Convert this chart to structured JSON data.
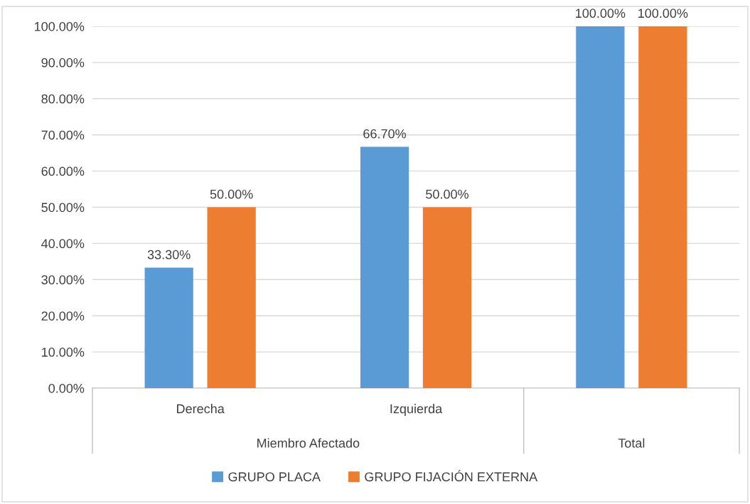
{
  "chart_data": {
    "type": "bar",
    "categories": [
      "Derecha",
      "Izquierda",
      null
    ],
    "series": [
      {
        "name": "GRUPO PLACA",
        "color": "#5b9bd5",
        "values": [
          33.3,
          66.7,
          100
        ],
        "value_labels": [
          "33.30%",
          "66.70%",
          "100.00%"
        ]
      },
      {
        "name": "GRUPO FIJACIÓN EXTERNA",
        "color": "#ed7d31",
        "values": [
          50,
          50,
          100
        ],
        "value_labels": [
          "50.00%",
          "50.00%",
          "100.00%"
        ]
      }
    ],
    "annotations": [
      "Miembro Afectado",
      "Total"
    ],
    "ylim": [
      0,
      100
    ],
    "yticks": [
      {
        "value": 0,
        "label": "0.00%"
      },
      {
        "value": 10,
        "label": "10.00%"
      },
      {
        "value": 20,
        "label": "20.00%"
      },
      {
        "value": 30,
        "label": "30.00%"
      },
      {
        "value": 40,
        "label": "40.00%"
      },
      {
        "value": 50,
        "label": "50.00%"
      },
      {
        "value": 60,
        "label": "60.00%"
      },
      {
        "value": 70,
        "label": "70.00%"
      },
      {
        "value": 80,
        "label": "80.00%"
      },
      {
        "value": 90,
        "label": "90.00%"
      },
      {
        "value": 100,
        "label": "100.00%"
      }
    ],
    "grid": "y",
    "legend": "bottom"
  }
}
